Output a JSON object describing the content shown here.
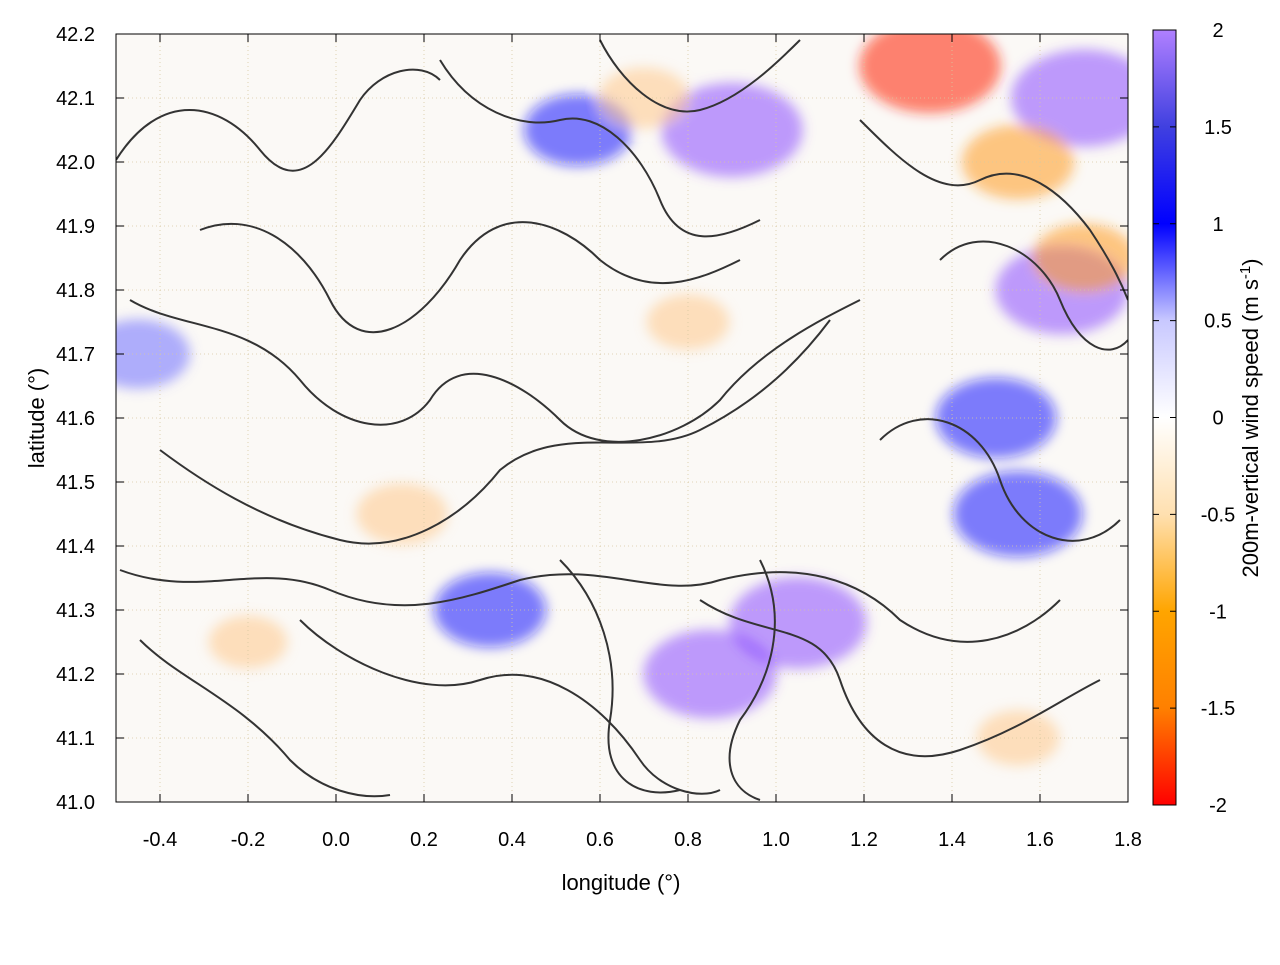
{
  "chart_data": {
    "type": "heatmap",
    "title": "",
    "xlabel": "longitude (°)",
    "ylabel": "latitude (°)",
    "xlim": [
      -0.5,
      1.8
    ],
    "ylim": [
      41.0,
      42.2
    ],
    "xticks": [
      -0.4,
      -0.2,
      0.0,
      0.2,
      0.4,
      0.6,
      0.8,
      1.0,
      1.2,
      1.4,
      1.6,
      1.8
    ],
    "xtick_labels": [
      "-0.4",
      "-0.2",
      "0.0",
      "0.2",
      "0.4",
      "0.6",
      "0.8",
      "1.0",
      "1.2",
      "1.4",
      "1.6",
      "1.8"
    ],
    "yticks": [
      41.0,
      41.1,
      41.2,
      41.3,
      41.4,
      41.5,
      41.6,
      41.7,
      41.8,
      41.9,
      42.0,
      42.1,
      42.2
    ],
    "ytick_labels": [
      "41.0",
      "41.1",
      "41.2",
      "41.3",
      "41.4",
      "41.5",
      "41.6",
      "41.7",
      "41.8",
      "41.9",
      "42.0",
      "42.1",
      "42.2"
    ],
    "grid": true,
    "colorbar": {
      "label_main": "200m-vertical wind speed (m s",
      "label_sup": "-1",
      "label_close": ")",
      "range": [
        -2,
        2
      ],
      "ticks": [
        2,
        1.5,
        1,
        0.5,
        0,
        -0.5,
        -1,
        -1.5,
        -2
      ],
      "tick_labels": [
        "2",
        "1.5",
        "1",
        "0.5",
        "0",
        "-0.5",
        "-1",
        "-1.5",
        "-2"
      ],
      "colors": [
        "#ff0000",
        "#ff8000",
        "#ffa500",
        "#ffe0b0",
        "#ffffff",
        "#c8c8ff",
        "#0000ff",
        "#4040e0",
        "#b080ff"
      ]
    },
    "overlay": "terrain elevation contour lines (black)",
    "features": {
      "positive_updraft_regions": [
        {
          "lon": 0.9,
          "lat": 42.05,
          "value": 1.8
        },
        {
          "lon": 1.7,
          "lat": 42.1,
          "value": 1.9
        },
        {
          "lon": 1.05,
          "lat": 41.28,
          "value": 1.7
        },
        {
          "lon": 0.85,
          "lat": 41.2,
          "value": 1.6
        },
        {
          "lon": 1.55,
          "lat": 41.45,
          "value": 1.5
        },
        {
          "lon": 1.65,
          "lat": 41.8,
          "value": 1.6
        },
        {
          "lon": 1.5,
          "lat": 41.6,
          "value": 1.3
        },
        {
          "lon": 0.35,
          "lat": 41.3,
          "value": 1.1
        },
        {
          "lon": -0.45,
          "lat": 41.7,
          "value": 0.9
        },
        {
          "lon": 0.55,
          "lat": 42.05,
          "value": 1.0
        }
      ],
      "negative_downdraft_regions": [
        {
          "lon": 1.35,
          "lat": 42.15,
          "value": -1.8
        },
        {
          "lon": 1.55,
          "lat": 42.0,
          "value": -1.1
        },
        {
          "lon": 1.7,
          "lat": 41.85,
          "value": -0.9
        },
        {
          "lon": 0.15,
          "lat": 41.45,
          "value": -0.6
        },
        {
          "lon": 0.7,
          "lat": 42.1,
          "value": -0.6
        },
        {
          "lon": 1.55,
          "lat": 41.1,
          "value": -0.4
        },
        {
          "lon": 0.8,
          "lat": 41.75,
          "value": -0.4
        },
        {
          "lon": -0.2,
          "lat": 41.25,
          "value": -0.3
        }
      ]
    }
  }
}
